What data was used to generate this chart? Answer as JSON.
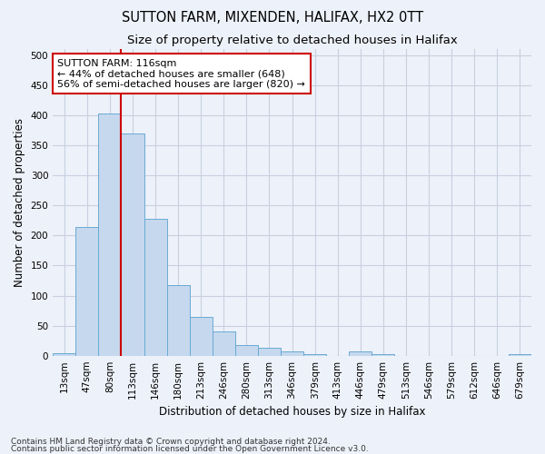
{
  "title": "SUTTON FARM, MIXENDEN, HALIFAX, HX2 0TT",
  "subtitle": "Size of property relative to detached houses in Halifax",
  "xlabel": "Distribution of detached houses by size in Halifax",
  "ylabel": "Number of detached properties",
  "categories": [
    "13sqm",
    "47sqm",
    "80sqm",
    "113sqm",
    "146sqm",
    "180sqm",
    "213sqm",
    "246sqm",
    "280sqm",
    "313sqm",
    "346sqm",
    "379sqm",
    "413sqm",
    "446sqm",
    "479sqm",
    "513sqm",
    "546sqm",
    "579sqm",
    "612sqm",
    "646sqm",
    "679sqm"
  ],
  "values": [
    4,
    214,
    404,
    370,
    228,
    118,
    65,
    40,
    18,
    13,
    7,
    3,
    0,
    7,
    3,
    0,
    0,
    0,
    0,
    0,
    3
  ],
  "bar_color": "#c5d8ee",
  "bar_edge_color": "#6aaad4",
  "vline_index": 3,
  "vline_color": "#cc0000",
  "annotation_text": "SUTTON FARM: 116sqm\n← 44% of detached houses are smaller (648)\n56% of semi-detached houses are larger (820) →",
  "annotation_box_color": "#ffffff",
  "annotation_box_edge_color": "#cc0000",
  "footnote1": "Contains HM Land Registry data © Crown copyright and database right 2024.",
  "footnote2": "Contains public sector information licensed under the Open Government Licence v3.0.",
  "bg_color": "#edf1f9",
  "grid_color": "#c8d0e0",
  "ylim": [
    0,
    510
  ],
  "yticks": [
    0,
    50,
    100,
    150,
    200,
    250,
    300,
    350,
    400,
    450,
    500
  ],
  "title_fontsize": 10.5,
  "subtitle_fontsize": 9.5,
  "axis_label_fontsize": 8.5,
  "tick_fontsize": 7.5,
  "annotation_fontsize": 8,
  "footnote_fontsize": 6.5
}
